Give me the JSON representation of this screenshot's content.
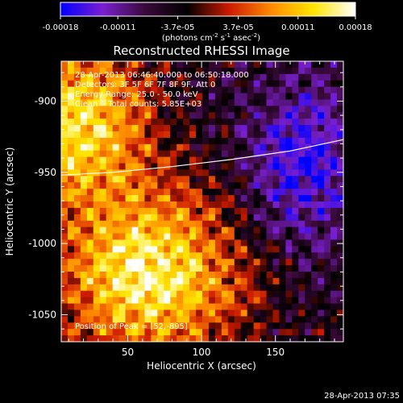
{
  "chart_data": {
    "type": "heatmap",
    "title": "Reconstructed RHESSI Image",
    "xlabel": "Heliocentric X (arcsec)",
    "ylabel": "Heliocentric Y (arcsec)",
    "xlim": [
      5,
      196
    ],
    "ylim": [
      -1069,
      -872
    ],
    "x_ticks": [
      50,
      100,
      150
    ],
    "y_ticks": [
      -900,
      -950,
      -1000,
      -1050
    ],
    "colorbar": {
      "ticks": [
        "-0.00018",
        "-0.00011",
        "-3.7e-05",
        "3.7e-05",
        "0.00011",
        "0.00018"
      ],
      "range": [
        -0.00018,
        0.00018
      ],
      "unit_label": "(photons cm-2 s-1 asec-2)",
      "colormap": [
        "#0000ff",
        "#7a1fd0",
        "#3a0a3a",
        "#000000",
        "#cc1a00",
        "#ff8a00",
        "#ffe600",
        "#ffffff"
      ]
    },
    "info_lines": [
      "28-Apr-2013 06:46:40.000 to 06:50:18.000",
      "Detectors: 3F 5F 6F 7F 8F 9F, Att 0",
      "Energy Range: 25.0 - 50.0 keV",
      "Clean    Total counts: 5.85E+03"
    ],
    "peak_label": "Position of Peak = [52,-895]",
    "limb_curve": [
      [
        5,
        -952
      ],
      [
        40,
        -950
      ],
      [
        80,
        -946
      ],
      [
        120,
        -941
      ],
      [
        160,
        -935
      ],
      [
        196,
        -927
      ]
    ]
  },
  "footer": {
    "timestamp": "28-Apr-2013 07:35"
  }
}
